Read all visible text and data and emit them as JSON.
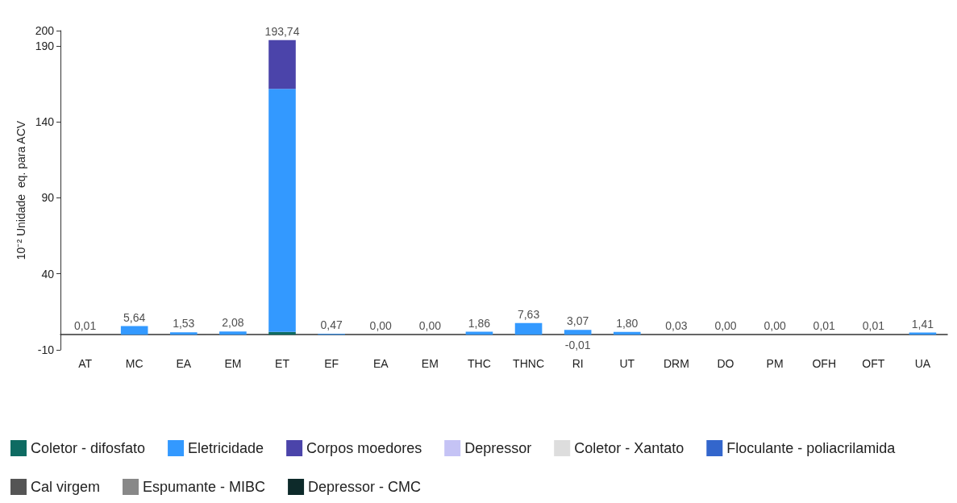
{
  "chart_data": {
    "type": "bar",
    "stacked": true,
    "ylabel": "10⁻² Unidade  eq. para ACV",
    "categories": [
      "AT",
      "MC",
      "EA",
      "EM",
      "ET",
      "EF",
      "EA",
      "EM",
      "THC",
      "THNC",
      "RI",
      "UT",
      "DRM",
      "DO",
      "PM",
      "OFH",
      "OFT",
      "UA"
    ],
    "ylim": [
      -10,
      200
    ],
    "yticks": [
      -10,
      40,
      90,
      140,
      190,
      200
    ],
    "grid": false,
    "legend": "bottom",
    "series": [
      {
        "name": "Coletor - difosfato",
        "color": "#0e6b62",
        "values": [
          0,
          0,
          0,
          0,
          1.74,
          0,
          0,
          0,
          0,
          0,
          0,
          0,
          0,
          0,
          0,
          0,
          0,
          0
        ]
      },
      {
        "name": "Eletricidade",
        "color": "#3399ff",
        "values": [
          null,
          5.6,
          1.5,
          2.1,
          160,
          0.5,
          0,
          0,
          1.9,
          7.6,
          3.1,
          1.8,
          null,
          0,
          0,
          null,
          null,
          1.4
        ]
      },
      {
        "name": "Corpos moedores",
        "color": "#4b44aa",
        "values": [
          0,
          0,
          0,
          0,
          32,
          0,
          0,
          0,
          0,
          0,
          0,
          0,
          0,
          0,
          0,
          0,
          0,
          0
        ]
      },
      {
        "name": "Depressor",
        "color": "#c5c3f5",
        "values": [
          0,
          0,
          0,
          0,
          0,
          0,
          0,
          0,
          0,
          0,
          0,
          0,
          0,
          0,
          0,
          0,
          0,
          0
        ]
      },
      {
        "name": "Coletor - Xantato",
        "color": "#dddddd",
        "values": [
          0,
          0,
          0,
          0,
          0,
          0,
          0,
          0,
          0,
          0,
          0,
          0,
          0,
          0,
          0,
          0,
          0,
          0
        ]
      },
      {
        "name": "Floculante - poliacrilamida",
        "color": "#3366cc",
        "values": [
          0,
          0,
          0,
          0,
          0,
          0,
          0,
          0,
          0,
          0,
          null,
          0,
          0,
          0,
          0,
          0,
          0,
          0
        ]
      },
      {
        "name": "Cal virgem",
        "color": "#555555",
        "values": [
          0,
          0,
          0,
          0,
          0,
          0,
          0,
          0,
          0,
          0,
          0,
          0,
          0,
          0,
          0,
          0,
          0,
          0
        ]
      },
      {
        "name": "Espumante - MIBC",
        "color": "#888888",
        "values": [
          0,
          0,
          0,
          0,
          0,
          0,
          0,
          0,
          0,
          0,
          0,
          0,
          0,
          0,
          0,
          0,
          0,
          0
        ]
      },
      {
        "name": "Depressor - CMC",
        "color": "#0d2a2a",
        "values": [
          0,
          0,
          0,
          0,
          0,
          0,
          0,
          0,
          0,
          0,
          0,
          0,
          0,
          0,
          0,
          0,
          0,
          0
        ]
      }
    ],
    "totals": [
      "0,01",
      "5,64",
      "1,53",
      "2,08",
      "193,74",
      "0,47",
      "0,00",
      "0,00",
      "1,86",
      "7,63",
      "3,07",
      "1,80",
      "0,03",
      "0,00",
      "0,00",
      "0,01",
      "0,01",
      "1,41"
    ],
    "annotations": [
      {
        "text": "-0,01",
        "x": "RI",
        "y": -0.01
      }
    ]
  }
}
